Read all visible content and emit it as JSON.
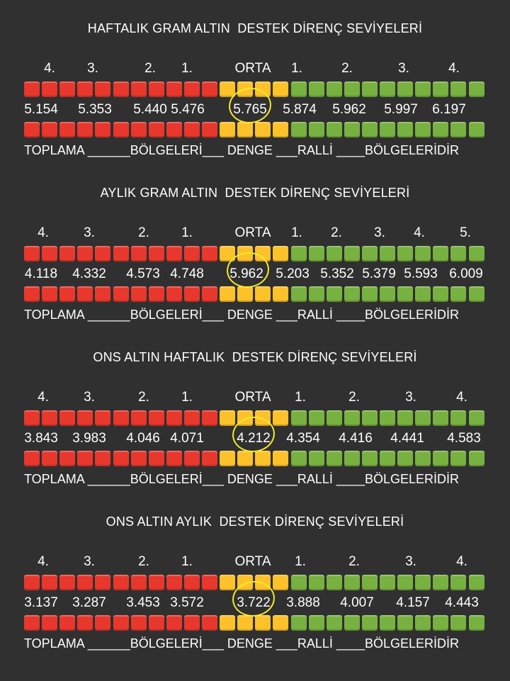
{
  "sections": [
    {
      "title": "HAFTALIK GRAM ALTIN  DESTEK DİRENÇ SEVİYELERİ",
      "levels": [
        "4.",
        "3.",
        "2.",
        "1.",
        "ORTA",
        "1.",
        "2.",
        "3.",
        "4."
      ],
      "values": [
        "5.154",
        "5.353",
        "5.440",
        "5.476",
        "5.765",
        "5.874",
        "5.962",
        "5.997",
        "6.197"
      ],
      "highlighted": "5.765",
      "footer": "TOPLAMA ______BÖLGELERİ___ DENGE ___RALLİ ____BÖLGELERİDİR"
    },
    {
      "title": "AYLIK GRAM ALTIN  DESTEK DİRENÇ SEVİYELERİ",
      "levels": [
        "4.",
        "3.",
        "2.",
        "1.",
        "ORTA",
        "1.",
        "2.",
        "3.",
        "4.",
        "5."
      ],
      "values": [
        "4.118",
        "4.332",
        "4.573",
        "4.748",
        "5.962",
        "5.203",
        "5.352",
        "5.379",
        "5.593",
        "6.009"
      ],
      "highlighted": "5.962",
      "footer": "TOPLAMA ______BÖLGELERİ___ DENGE ___RALLİ ____BÖLGELERİDİR"
    },
    {
      "title": "ONS ALTIN HAFTALIK  DESTEK DİRENÇ SEVİYELERİ",
      "levels": [
        "4.",
        "3.",
        "2.",
        "1.",
        "ORTA",
        "1.",
        "2.",
        "3.",
        "4."
      ],
      "values": [
        "3.843",
        "3.983",
        "4.046",
        "4.071",
        "4.212",
        "4.354",
        "4.416",
        "4.441",
        "4.583"
      ],
      "highlighted": "4.212",
      "footer": "TOPLAMA ______BÖLGELERİ___ DENGE ___RALLİ ____BÖLGELERİDİR"
    },
    {
      "title": "ONS ALTIN AYLIK  DESTEK DİRENÇ SEVİYELERİ",
      "levels": [
        "4.",
        "3.",
        "2.",
        "1.",
        "ORTA",
        "1.",
        "2.",
        "3.",
        "4."
      ],
      "values": [
        "3.137",
        "3.287",
        "3.453",
        "3.572",
        "3.722",
        "3.888",
        "4.007",
        "4.157",
        "4.443"
      ],
      "highlighted": "3.722",
      "footer": "TOPLAMA ______BÖLGELERİ___ DENGE ___RALLİ ____BÖLGELERİDİR"
    }
  ],
  "colors": {
    "background": "#303030",
    "support_zone": "#e8372c",
    "balance_zone": "#fdc22a",
    "rally_zone": "#77b140",
    "highlight_circle": "#f2ea2a"
  },
  "icons": {
    "support_square": "red-square-icon",
    "balance_square": "yellow-square-icon",
    "rally_square": "green-square-icon"
  }
}
